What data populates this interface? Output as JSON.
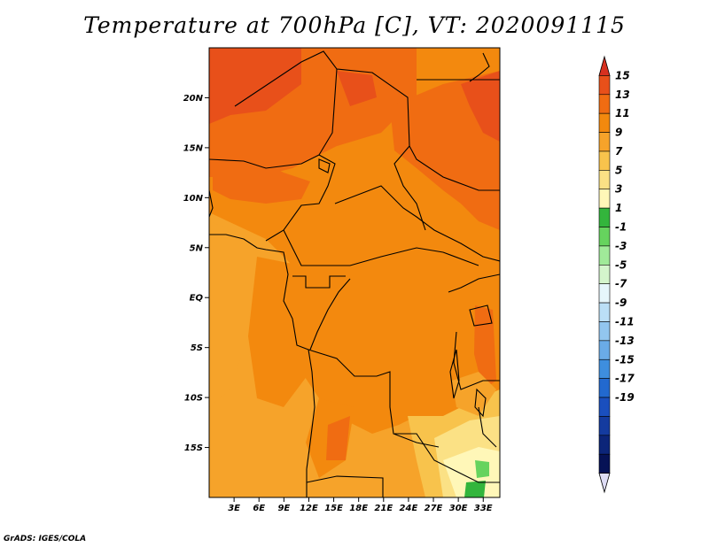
{
  "title": "Temperature at 700hPa [C], VT: 2020091115",
  "credit": "GrADS: IGES/COLA",
  "map": {
    "lat_labels": [
      "20N",
      "15N",
      "10N",
      "5N",
      "EQ",
      "5S",
      "10S",
      "15S"
    ],
    "lat_values": [
      20,
      15,
      10,
      5,
      0,
      -5,
      -10,
      -15
    ],
    "lon_labels": [
      "3E",
      "6E",
      "9E",
      "12E",
      "15E",
      "18E",
      "21E",
      "24E",
      "27E",
      "30E",
      "33E"
    ],
    "lon_values": [
      3,
      6,
      9,
      12,
      15,
      18,
      21,
      24,
      27,
      30,
      33
    ],
    "lon_range": [
      0,
      35
    ],
    "lat_range": [
      -20,
      25
    ]
  },
  "colorbar": {
    "labels": [
      "15",
      "13",
      "11",
      "9",
      "7",
      "5",
      "3",
      "1",
      "-1",
      "-3",
      "-5",
      "-7",
      "-9",
      "-11",
      "-13",
      "-15",
      "-17",
      "-19"
    ],
    "colors": [
      "#d7301f",
      "#e8501a",
      "#f06c12",
      "#f3890e",
      "#f6a32a",
      "#f8c34c",
      "#fbe185",
      "#fff7b8",
      "#33b53c",
      "#66d35e",
      "#a0ea99",
      "#d4f5cc",
      "#e6f6fb",
      "#bbdff6",
      "#92c6ef",
      "#6aabe7",
      "#3e8ede",
      "#2269cf",
      "#1a4fbe",
      "#143b9f",
      "#0c2579",
      "#061256",
      "#dedcf5"
    ]
  },
  "regions": [
    {
      "name": "north-hot",
      "color": "#e8501a"
    },
    {
      "name": "east-sudan-hot",
      "color": "#f06c12"
    },
    {
      "name": "central-warm",
      "color": "#f3890e"
    },
    {
      "name": "south-cool",
      "color": "#f6a32a"
    },
    {
      "name": "southeast-cool",
      "color": "#fbe185"
    },
    {
      "name": "zambia-green",
      "color": "#66d35e"
    }
  ]
}
